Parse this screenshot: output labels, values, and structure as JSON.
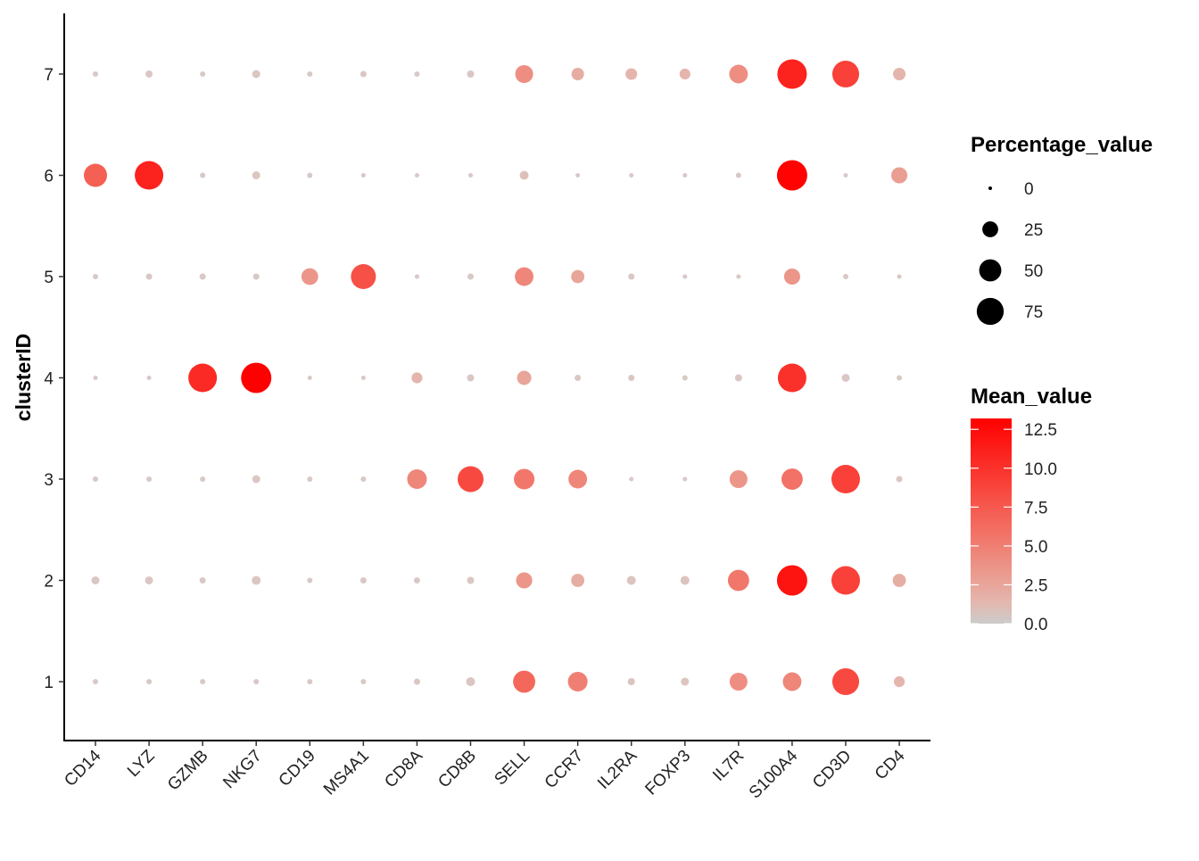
{
  "chart_data": {
    "type": "dotplot",
    "title": "",
    "xlabel": "",
    "ylabel": "clusterID",
    "genes": [
      "CD14",
      "LYZ",
      "GZMB",
      "NKG7",
      "CD19",
      "MS4A1",
      "CD8A",
      "CD8B",
      "SELL",
      "CCR7",
      "IL2RA",
      "FOXP3",
      "IL7R",
      "S100A4",
      "CD3D",
      "CD4"
    ],
    "clusters": [
      "1",
      "2",
      "3",
      "4",
      "5",
      "6",
      "7"
    ],
    "ylim": [
      0.4,
      7.6
    ],
    "grid": false,
    "percentage_value": {
      "1": [
        1.7,
        1.7,
        1.7,
        1.7,
        1.7,
        1.7,
        2.8,
        7,
        50,
        39,
        4,
        5.4,
        32,
        35,
        74,
        11
      ],
      "2": [
        5.4,
        5.4,
        2.8,
        7,
        1.7,
        2.8,
        2.8,
        4,
        26,
        17,
        7,
        7,
        46,
        95,
        84,
        17
      ],
      "3": [
        1.7,
        1.7,
        1.7,
        5.4,
        1.7,
        1.7,
        39,
        69,
        43,
        35,
        0.8,
        0.8,
        32,
        46,
        84,
        2.8
      ],
      "4": [
        0.8,
        0.8,
        84,
        95,
        0.8,
        0.8,
        11,
        4,
        20,
        2.8,
        2.8,
        1.7,
        4,
        84,
        5.4,
        1.7
      ],
      "5": [
        1.7,
        2.8,
        2.8,
        2.8,
        28,
        64,
        0.8,
        2.8,
        35,
        17,
        2.8,
        0.8,
        0.8,
        26,
        1.7,
        0.8
      ],
      "6": [
        55,
        84,
        1.7,
        5.4,
        1.7,
        0.8,
        0.8,
        0.8,
        7,
        0.8,
        0.8,
        0.8,
        1.7,
        95,
        0.8,
        26
      ],
      "7": [
        1.7,
        4,
        1.7,
        5.4,
        1.7,
        2.8,
        1.7,
        4,
        32,
        15,
        13,
        11,
        35,
        90,
        74,
        15
      ]
    },
    "mean_value": {
      "1": [
        0.2,
        0.2,
        0.2,
        0.2,
        0.2,
        0.2,
        0.3,
        0.4,
        6.5,
        5,
        0.5,
        0.5,
        4,
        4.5,
        8.5,
        1.5
      ],
      "2": [
        0.3,
        0.3,
        0.2,
        0.4,
        0.2,
        0.2,
        0.2,
        0.3,
        3.5,
        2,
        0.5,
        0.5,
        5.5,
        12,
        9,
        2
      ],
      "3": [
        0.2,
        0.2,
        0.2,
        0.3,
        0.2,
        0.2,
        4.5,
        8.5,
        5.5,
        4.5,
        0.2,
        0.2,
        3.5,
        5.8,
        9,
        0.3
      ],
      "4": [
        0.2,
        0.2,
        10.5,
        13.2,
        0.2,
        0.2,
        1.5,
        0.3,
        2.5,
        0.3,
        0.3,
        0.2,
        0.3,
        10,
        0.3,
        0.2
      ],
      "5": [
        0.2,
        0.2,
        0.2,
        0.2,
        3.5,
        8,
        0.2,
        0.2,
        4.5,
        2.5,
        0.3,
        0.2,
        0.2,
        3.5,
        0.2,
        0.2
      ],
      "6": [
        7,
        11,
        0.2,
        0.4,
        0.2,
        0.2,
        0.2,
        0.2,
        0.8,
        0.2,
        0.2,
        0.2,
        0.2,
        13,
        0.2,
        3
      ],
      "7": [
        0.2,
        0.3,
        0.2,
        0.4,
        0.2,
        0.3,
        0.2,
        0.3,
        4,
        2,
        1.5,
        1.5,
        4,
        11,
        9,
        1.5
      ]
    },
    "size_legend": {
      "title": "Percentage_value",
      "breaks": [
        0,
        25,
        50,
        75
      ],
      "labels": [
        "0",
        "25",
        "50",
        "75"
      ]
    },
    "color_legend": {
      "title": "Mean_value",
      "breaks": [
        0,
        2.5,
        5,
        7.5,
        10,
        12.5
      ],
      "labels": [
        "0.0",
        "2.5",
        "5.0",
        "7.5",
        "10.0",
        "12.5"
      ],
      "range": [
        0,
        13.2
      ],
      "low_color": "#CCCCCC",
      "high_color": "#FF0000"
    }
  }
}
